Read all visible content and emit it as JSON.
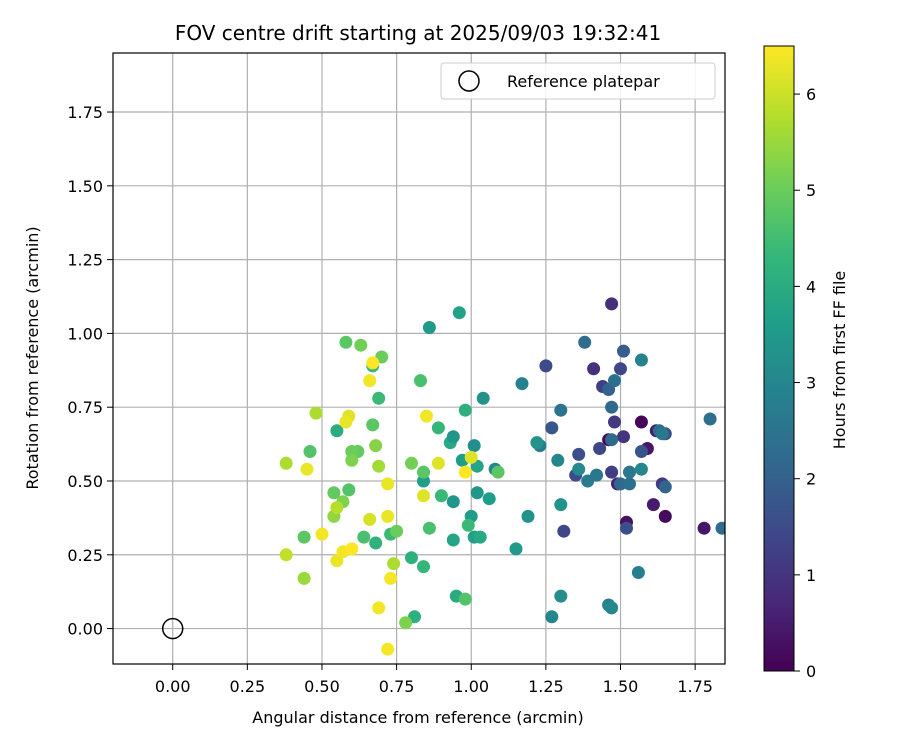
{
  "chart_data": {
    "type": "scatter",
    "title": "FOV centre drift starting at 2025/09/03 19:32:41",
    "xlabel": "Angular distance from reference (arcmin)",
    "ylabel": "Rotation from reference (arcmin)",
    "xlim": [
      -0.2,
      1.85
    ],
    "ylim": [
      -0.12,
      1.95
    ],
    "xticks": [
      0.0,
      0.25,
      0.5,
      0.75,
      1.0,
      1.25,
      1.5,
      1.75
    ],
    "xtick_labels": [
      "0.00",
      "0.25",
      "0.50",
      "0.75",
      "1.00",
      "1.25",
      "1.50",
      "1.75"
    ],
    "yticks": [
      0.0,
      0.25,
      0.5,
      0.75,
      1.0,
      1.25,
      1.5,
      1.75
    ],
    "ytick_labels": [
      "0.00",
      "0.25",
      "0.50",
      "0.75",
      "1.00",
      "1.25",
      "1.50",
      "1.75"
    ],
    "grid": true,
    "legend": {
      "position": "top-right",
      "entries": [
        {
          "label": "Reference platepar",
          "marker": "open-circle"
        }
      ]
    },
    "reference_point": {
      "x": 0.0,
      "y": 0.0
    },
    "colorbar": {
      "label": "Hours from first FF file",
      "range": [
        0,
        6.5
      ],
      "ticks": [
        0,
        1,
        2,
        3,
        4,
        5,
        6
      ],
      "tick_labels": [
        "0",
        "1",
        "2",
        "3",
        "4",
        "5",
        "6"
      ],
      "colormap": "viridis"
    },
    "colormap_stops": [
      "#440154",
      "#482878",
      "#3e4989",
      "#31688e",
      "#26828e",
      "#1f9e89",
      "#35b779",
      "#6ece58",
      "#b5de2b",
      "#fde725"
    ],
    "points": [
      [
        1.47,
        1.1,
        0.9
      ],
      [
        1.62,
        0.67,
        0.5
      ],
      [
        1.57,
        0.7,
        0.1
      ],
      [
        1.46,
        0.64,
        0.2
      ],
      [
        1.52,
        0.36,
        0.3
      ],
      [
        1.65,
        0.38,
        0.2
      ],
      [
        1.78,
        0.34,
        0.4
      ],
      [
        1.59,
        0.61,
        0.4
      ],
      [
        1.49,
        0.49,
        0.6
      ],
      [
        1.41,
        0.88,
        0.9
      ],
      [
        1.48,
        0.7,
        1.1
      ],
      [
        1.44,
        0.82,
        1.2
      ],
      [
        1.5,
        0.88,
        1.4
      ],
      [
        1.51,
        0.65,
        1.0
      ],
      [
        1.47,
        0.53,
        1.2
      ],
      [
        1.43,
        0.61,
        1.4
      ],
      [
        1.36,
        0.59,
        1.6
      ],
      [
        1.35,
        0.52,
        1.5
      ],
      [
        1.52,
        0.34,
        1.6
      ],
      [
        1.61,
        0.42,
        0.5
      ],
      [
        1.64,
        0.49,
        1.1
      ],
      [
        1.65,
        0.66,
        1.6
      ],
      [
        1.57,
        0.6,
        1.7
      ],
      [
        1.47,
        0.64,
        2.2
      ],
      [
        1.46,
        0.81,
        2.0
      ],
      [
        1.48,
        0.84,
        2.4
      ],
      [
        1.51,
        0.94,
        1.9
      ],
      [
        1.38,
        0.97,
        2.3
      ],
      [
        1.47,
        0.75,
        2.2
      ],
      [
        1.31,
        0.33,
        1.4
      ],
      [
        1.25,
        0.89,
        1.5
      ],
      [
        1.27,
        0.68,
        1.8
      ],
      [
        1.3,
        0.74,
        2.5
      ],
      [
        1.23,
        0.62,
        2.7
      ],
      [
        1.17,
        0.83,
        2.9
      ],
      [
        1.29,
        0.57,
        3.0
      ],
      [
        1.36,
        0.54,
        3.1
      ],
      [
        1.39,
        0.5,
        2.7
      ],
      [
        1.42,
        0.52,
        2.6
      ],
      [
        1.5,
        0.49,
        2.2
      ],
      [
        1.53,
        0.53,
        2.6
      ],
      [
        1.57,
        0.54,
        3.0
      ],
      [
        1.53,
        0.49,
        2.4
      ],
      [
        1.65,
        0.48,
        2.1
      ],
      [
        1.63,
        0.67,
        2.3
      ],
      [
        1.64,
        0.66,
        2.6
      ],
      [
        1.57,
        0.91,
        2.9
      ],
      [
        1.8,
        0.71,
        2.4
      ],
      [
        1.84,
        0.34,
        2.3
      ],
      [
        1.56,
        0.19,
        2.8
      ],
      [
        1.46,
        0.08,
        2.9
      ],
      [
        1.47,
        0.07,
        3.0
      ],
      [
        1.3,
        0.11,
        3.2
      ],
      [
        1.27,
        0.04,
        3.0
      ],
      [
        1.3,
        0.42,
        3.3
      ],
      [
        1.19,
        0.38,
        3.3
      ],
      [
        1.15,
        0.27,
        3.5
      ],
      [
        1.22,
        0.63,
        3.3
      ],
      [
        1.04,
        0.78,
        3.3
      ],
      [
        1.08,
        0.54,
        3.0
      ],
      [
        1.06,
        0.44,
        3.6
      ],
      [
        1.02,
        0.46,
        3.4
      ],
      [
        1.01,
        0.62,
        3.2
      ],
      [
        0.97,
        0.57,
        3.6
      ],
      [
        1.02,
        0.55,
        3.8
      ],
      [
        0.98,
        0.74,
        4.1
      ],
      [
        0.96,
        1.07,
        3.7
      ],
      [
        0.86,
        1.02,
        3.5
      ],
      [
        0.93,
        0.63,
        3.9
      ],
      [
        0.94,
        0.65,
        3.4
      ],
      [
        0.89,
        0.68,
        4.3
      ],
      [
        0.9,
        0.45,
        4.4
      ],
      [
        0.94,
        0.43,
        3.4
      ],
      [
        1.0,
        0.38,
        3.6
      ],
      [
        1.01,
        0.31,
        3.7
      ],
      [
        1.03,
        0.31,
        3.9
      ],
      [
        0.94,
        0.3,
        3.8
      ],
      [
        0.99,
        0.35,
        4.4
      ],
      [
        1.09,
        0.53,
        4.8
      ],
      [
        0.95,
        0.11,
        4.0
      ],
      [
        0.98,
        0.1,
        4.7
      ],
      [
        0.81,
        0.04,
        4.1
      ],
      [
        0.78,
        0.02,
        5.2
      ],
      [
        0.8,
        0.24,
        4.1
      ],
      [
        0.84,
        0.21,
        4.3
      ],
      [
        0.86,
        0.34,
        4.6
      ],
      [
        0.84,
        0.5,
        3.6
      ],
      [
        0.84,
        0.53,
        4.8
      ],
      [
        0.8,
        0.56,
        5.1
      ],
      [
        0.83,
        0.84,
        4.6
      ],
      [
        0.69,
        0.78,
        4.4
      ],
      [
        0.7,
        0.92,
        5.0
      ],
      [
        0.67,
        0.69,
        4.8
      ],
      [
        0.67,
        0.89,
        4.4
      ],
      [
        0.58,
        0.97,
        4.8
      ],
      [
        0.63,
        0.96,
        5.1
      ],
      [
        0.55,
        0.67,
        4.0
      ],
      [
        0.62,
        0.6,
        4.9
      ],
      [
        0.59,
        0.47,
        4.7
      ],
      [
        0.57,
        0.43,
        5.2
      ],
      [
        0.6,
        0.6,
        5.0
      ],
      [
        0.6,
        0.57,
        5.2
      ],
      [
        0.46,
        0.6,
        4.7
      ],
      [
        0.54,
        0.46,
        4.9
      ],
      [
        0.54,
        0.38,
        5.4
      ],
      [
        0.44,
        0.31,
        4.8
      ],
      [
        0.44,
        0.17,
        5.5
      ],
      [
        0.38,
        0.25,
        5.9
      ],
      [
        0.38,
        0.56,
        5.7
      ],
      [
        0.48,
        0.73,
        5.7
      ],
      [
        0.59,
        0.72,
        6.2
      ],
      [
        0.58,
        0.7,
        6.3
      ],
      [
        0.66,
        0.84,
        6.4
      ],
      [
        0.67,
        0.9,
        6.5
      ],
      [
        0.68,
        0.62,
        5.3
      ],
      [
        0.69,
        0.55,
        5.6
      ],
      [
        0.64,
        0.31,
        4.6
      ],
      [
        0.68,
        0.29,
        4.2
      ],
      [
        0.73,
        0.32,
        4.4
      ],
      [
        0.75,
        0.33,
        5.0
      ],
      [
        0.74,
        0.22,
        5.7
      ],
      [
        0.73,
        0.17,
        6.4
      ],
      [
        0.72,
        0.38,
        6.3
      ],
      [
        0.66,
        0.37,
        6.1
      ],
      [
        0.72,
        0.49,
        6.3
      ],
      [
        0.55,
        0.41,
        5.8
      ],
      [
        0.55,
        0.23,
        6.3
      ],
      [
        0.57,
        0.26,
        6.4
      ],
      [
        0.6,
        0.27,
        6.5
      ],
      [
        0.5,
        0.32,
        6.4
      ],
      [
        0.45,
        0.54,
        6.3
      ],
      [
        0.69,
        0.07,
        6.4
      ],
      [
        0.72,
        -0.07,
        6.4
      ],
      [
        0.84,
        0.45,
        6.2
      ],
      [
        0.85,
        0.72,
        6.4
      ],
      [
        0.89,
        0.56,
        6.2
      ],
      [
        0.98,
        0.53,
        6.5
      ],
      [
        1.0,
        0.58,
        6.2
      ]
    ]
  }
}
